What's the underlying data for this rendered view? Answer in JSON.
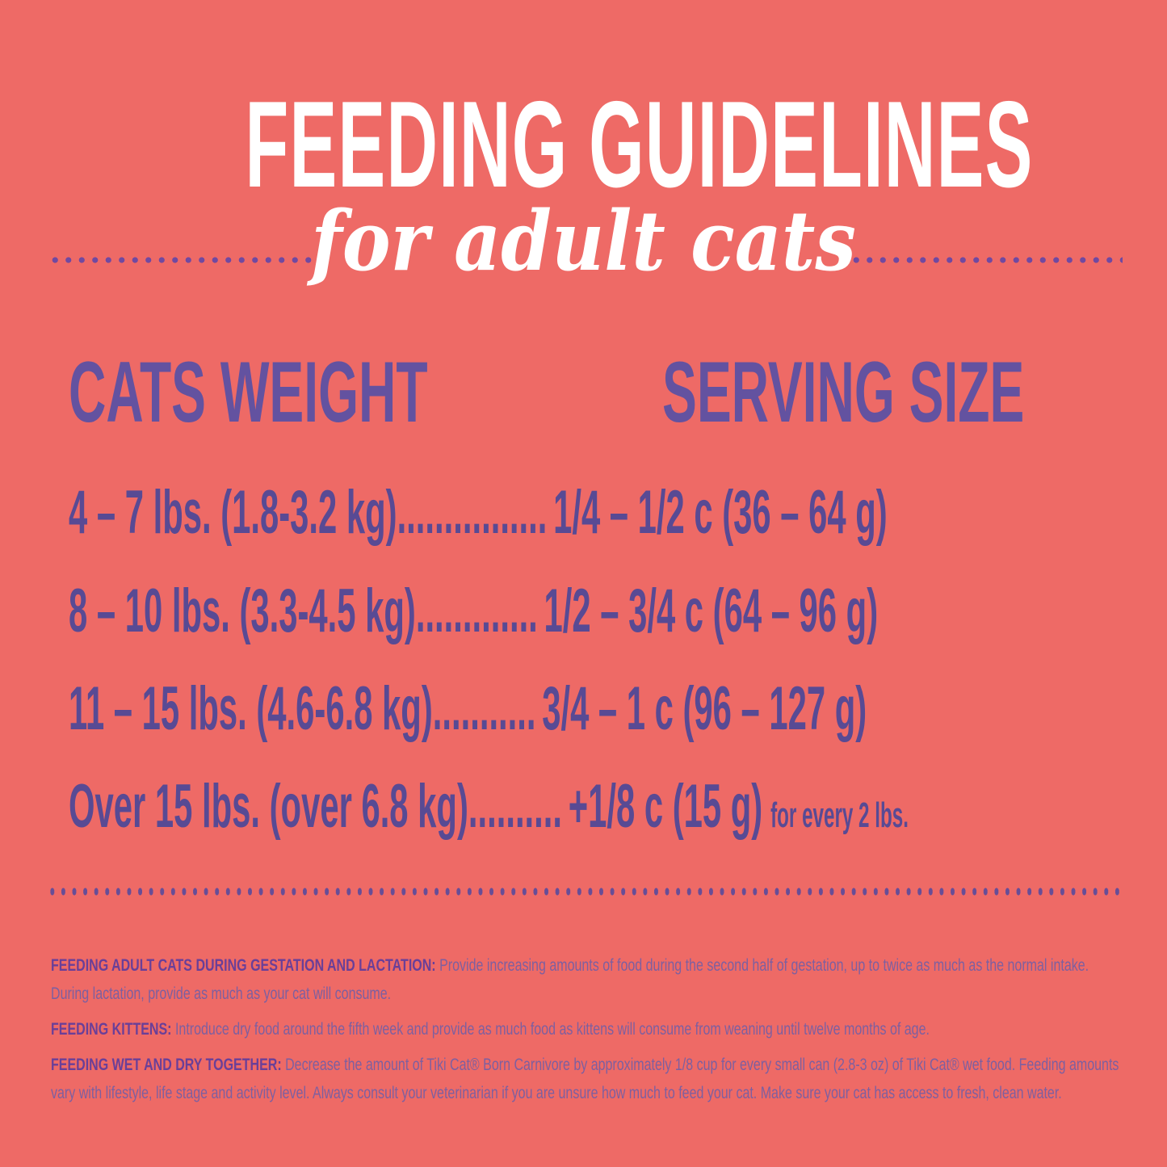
{
  "palette": {
    "background": "#ee6a66",
    "title_white": "#ffffff",
    "header_purple": "#6352a0",
    "row_purple": "#584a94",
    "dot_purple": "#7149a0",
    "divider_purple": "#684d96",
    "note_label_purple": "#6a3f98",
    "note_text_purple": "#7d5fa0"
  },
  "header": {
    "title": "FEEDING GUIDELINES",
    "subtitle": "for adult cats"
  },
  "table": {
    "col1_header": "CATS WEIGHT",
    "col2_header": "SERVING SIZE",
    "rows": [
      {
        "weight": "4 – 7 lbs. (1.8-3.2 kg)",
        "dots": "................",
        "serving": "1/4 – 1/2 c (36 – 64 g)",
        "suffix": ""
      },
      {
        "weight": "8 – 10 lbs. (3.3-4.5 kg)",
        "dots": ".............",
        "serving": "1/2 – 3/4 c (64 – 96 g)",
        "suffix": ""
      },
      {
        "weight": "11 – 15 lbs. (4.6-6.8 kg)",
        "dots": "...........",
        "serving": "3/4 – 1 c (96 – 127 g)",
        "suffix": ""
      },
      {
        "weight": "Over 15 lbs. (over 6.8 kg)",
        "dots": "..........",
        "serving": "+1/8 c (15 g)",
        "suffix": "for every 2 lbs."
      }
    ]
  },
  "notes": [
    {
      "label": "FEEDING ADULT CATS DURING GESTATION AND LACTATION:",
      "text": "Provide increasing amounts of food during the second half of gestation, up to twice as much as the normal intake.  During lactation, provide as much as your cat will consume."
    },
    {
      "label": "FEEDING KITTENS:",
      "text": "Introduce dry food around the fifth week and provide as much food as kittens will consume from weaning until twelve months of age."
    },
    {
      "label": "FEEDING WET AND DRY TOGETHER:",
      "text": "Decrease the amount of Tiki Cat® Born Carnivore by approximately 1/8 cup for every small can (2.8-3 oz) of Tiki Cat® wet food. Feeding amounts vary with lifestyle, life stage and activity level.  Always consult your veterinarian if you are unsure how much to feed your cat. Make sure your cat has access to fresh, clean water."
    }
  ]
}
